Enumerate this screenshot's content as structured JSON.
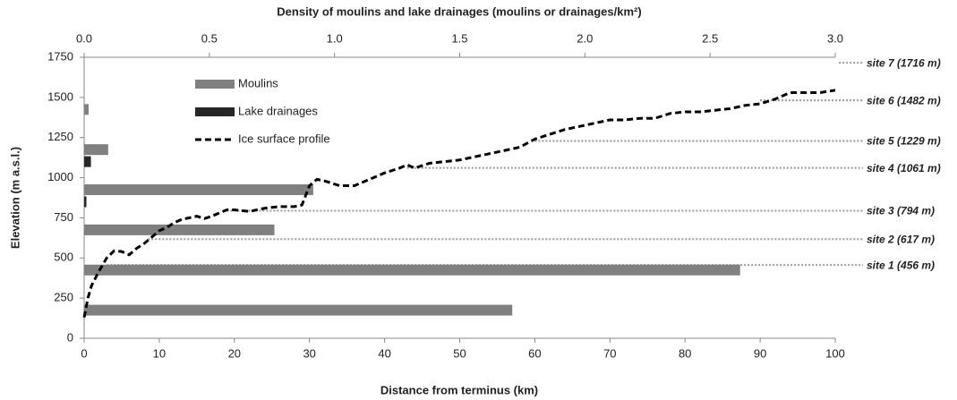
{
  "chart_data": {
    "type": "bar-line",
    "title": "Density of moulins and lake drainages (moulins or drainages/km²)",
    "x_label": "Distance from terminus (km)",
    "y_label": "Elevation (m a.s.l.)",
    "xlim": [
      0,
      100
    ],
    "xticks": [
      0,
      10,
      20,
      30,
      40,
      50,
      60,
      70,
      80,
      90,
      100
    ],
    "x2lim": [
      0,
      3
    ],
    "x2ticks": [
      {
        "value": 0,
        "label": "0.0"
      },
      0.5,
      {
        "value": 1,
        "label": "1.0"
      },
      1.5,
      {
        "value": 2,
        "label": "2.0"
      },
      2.5,
      {
        "value": 3,
        "label": "3.0"
      }
    ],
    "ylim": [
      0,
      1750
    ],
    "yticks": [
      0,
      250,
      500,
      750,
      1000,
      1250,
      1500,
      1750
    ],
    "bins": [
      0,
      250,
      500,
      750,
      1000,
      1250,
      1500,
      1750
    ],
    "bar_series": [
      {
        "name": "Moulins",
        "color": "#808080",
        "values": [
          1.71,
          2.62,
          0.76,
          0.915,
          0.096,
          0.018,
          0
        ]
      },
      {
        "name": "Lake drainages",
        "color": "#262626",
        "values": [
          0,
          0,
          0,
          0.009,
          0.027,
          0,
          0
        ]
      }
    ],
    "line_series": {
      "name": "Ice surface profile",
      "color": "#000000",
      "x": [
        0,
        0.5,
        1,
        2,
        3,
        4,
        5,
        6,
        7,
        8,
        9,
        10,
        11,
        12,
        13,
        14,
        15,
        16,
        17,
        18,
        19,
        20,
        22,
        24,
        26,
        28,
        29,
        30,
        31,
        32,
        34,
        36,
        38,
        40,
        42,
        43,
        44,
        46,
        48,
        50,
        52,
        54,
        56,
        58,
        60,
        62,
        64,
        66,
        68,
        70,
        72,
        74,
        76,
        78,
        80,
        82,
        84,
        86,
        88,
        90,
        92,
        94,
        96,
        98,
        100
      ],
      "values": [
        130,
        250,
        330,
        420,
        500,
        545,
        540,
        520,
        560,
        590,
        630,
        670,
        690,
        720,
        740,
        750,
        760,
        745,
        760,
        780,
        800,
        800,
        790,
        810,
        820,
        820,
        830,
        950,
        990,
        980,
        950,
        950,
        990,
        1030,
        1060,
        1080,
        1060,
        1090,
        1100,
        1110,
        1130,
        1150,
        1170,
        1190,
        1240,
        1270,
        1300,
        1320,
        1340,
        1360,
        1360,
        1370,
        1370,
        1400,
        1410,
        1410,
        1420,
        1430,
        1450,
        1460,
        1490,
        1530,
        1530,
        1530,
        1545
      ]
    },
    "sites": [
      {
        "label": "site 1 (456 m)",
        "elevation": 456,
        "distance": 3
      },
      {
        "label": "site 2 (617 m)",
        "elevation": 617,
        "distance": 8.5
      },
      {
        "label": "site 3 (794 m)",
        "elevation": 794,
        "distance": 19
      },
      {
        "label": "site 4 (1061 m)",
        "elevation": 1061,
        "distance": 43
      },
      {
        "label": "site 5 (1229 m)",
        "elevation": 1229,
        "distance": 60
      },
      {
        "label": "site 6 (1482 m)",
        "elevation": 1482,
        "distance": 90
      },
      {
        "label": "site 7 (1716 m)",
        "elevation": 1716,
        "distance": 100.5
      }
    ]
  }
}
